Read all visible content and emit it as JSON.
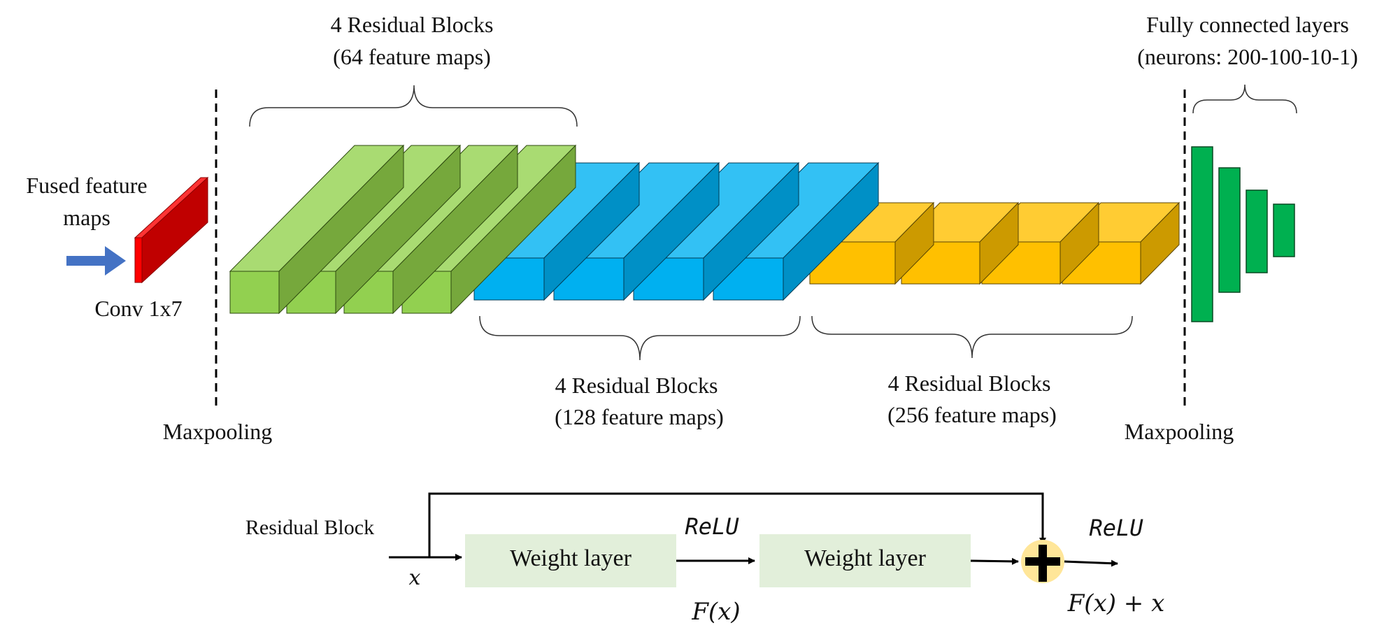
{
  "labels": {
    "fused_line1": "Fused feature",
    "fused_line2": "maps",
    "conv": "Conv 1x7",
    "maxpool_left": "Maxpooling",
    "maxpool_right": "Maxpooling",
    "group64_line1": "4 Residual Blocks",
    "group64_line2": "(64 feature maps)",
    "group128_line1": "4 Residual Blocks",
    "group128_line2": "(128 feature maps)",
    "group256_line1": "4 Residual Blocks",
    "group256_line2": "(256 feature maps)",
    "fc_line1": "Fully connected layers",
    "fc_line2": "(neurons: 200-100-10-1)"
  },
  "residual_block": {
    "title": "Residual Block",
    "weight_layer_1": "Weight layer",
    "weight_layer_2": "Weight layer",
    "relu_1": "ReLU",
    "relu_2": "ReLU",
    "input_x": "x",
    "fx": "F(x)",
    "output": "F(x) + x"
  },
  "colors": {
    "green_front": "#92d050",
    "green_top": "#a9db72",
    "green_side": "#76a83c",
    "blue_front": "#00b0f0",
    "blue_top": "#33c1f4",
    "blue_side": "#0090c6",
    "orange_front": "#ffc000",
    "orange_top": "#ffcc33",
    "orange_side": "#cc9a00",
    "red_front": "#ff0000",
    "red_side": "#c00000",
    "fc_green": "#00b050",
    "arrow_blue": "#4472c4",
    "weight_fill": "#e2efda",
    "sum_fill": "#ffe699"
  }
}
